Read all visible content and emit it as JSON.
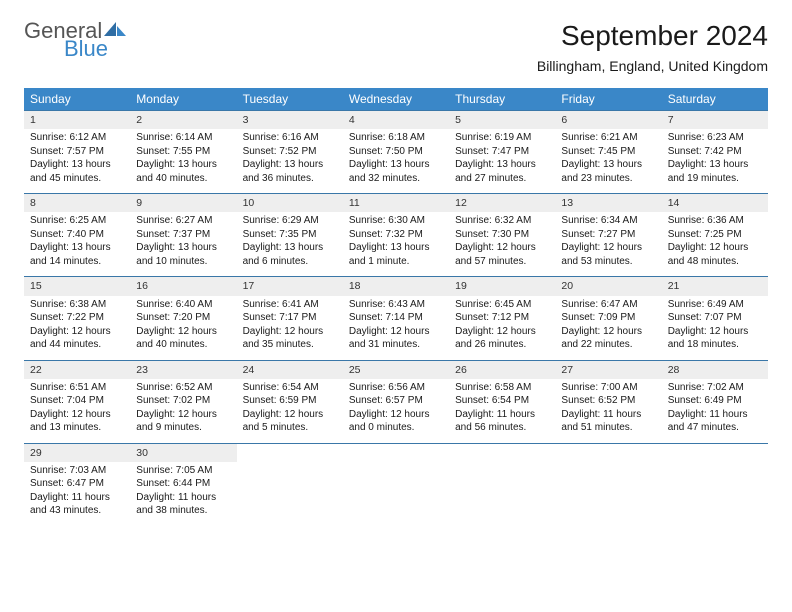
{
  "logo": {
    "text1": "General",
    "text2": "Blue"
  },
  "title": "September 2024",
  "location": "Billingham, England, United Kingdom",
  "theme": {
    "header_bg": "#3a87c8",
    "header_fg": "#ffffff",
    "daynum_bg": "#eeeeee",
    "row_border": "#3a77a8",
    "title_fontsize": 28,
    "location_fontsize": 14,
    "cell_fontsize": 10,
    "daynum_fontsize": 10.5
  },
  "weekdays": [
    "Sunday",
    "Monday",
    "Tuesday",
    "Wednesday",
    "Thursday",
    "Friday",
    "Saturday"
  ],
  "weeks": [
    [
      {
        "n": "1",
        "sunrise": "Sunrise: 6:12 AM",
        "sunset": "Sunset: 7:57 PM",
        "day1": "Daylight: 13 hours",
        "day2": "and 45 minutes."
      },
      {
        "n": "2",
        "sunrise": "Sunrise: 6:14 AM",
        "sunset": "Sunset: 7:55 PM",
        "day1": "Daylight: 13 hours",
        "day2": "and 40 minutes."
      },
      {
        "n": "3",
        "sunrise": "Sunrise: 6:16 AM",
        "sunset": "Sunset: 7:52 PM",
        "day1": "Daylight: 13 hours",
        "day2": "and 36 minutes."
      },
      {
        "n": "4",
        "sunrise": "Sunrise: 6:18 AM",
        "sunset": "Sunset: 7:50 PM",
        "day1": "Daylight: 13 hours",
        "day2": "and 32 minutes."
      },
      {
        "n": "5",
        "sunrise": "Sunrise: 6:19 AM",
        "sunset": "Sunset: 7:47 PM",
        "day1": "Daylight: 13 hours",
        "day2": "and 27 minutes."
      },
      {
        "n": "6",
        "sunrise": "Sunrise: 6:21 AM",
        "sunset": "Sunset: 7:45 PM",
        "day1": "Daylight: 13 hours",
        "day2": "and 23 minutes."
      },
      {
        "n": "7",
        "sunrise": "Sunrise: 6:23 AM",
        "sunset": "Sunset: 7:42 PM",
        "day1": "Daylight: 13 hours",
        "day2": "and 19 minutes."
      }
    ],
    [
      {
        "n": "8",
        "sunrise": "Sunrise: 6:25 AM",
        "sunset": "Sunset: 7:40 PM",
        "day1": "Daylight: 13 hours",
        "day2": "and 14 minutes."
      },
      {
        "n": "9",
        "sunrise": "Sunrise: 6:27 AM",
        "sunset": "Sunset: 7:37 PM",
        "day1": "Daylight: 13 hours",
        "day2": "and 10 minutes."
      },
      {
        "n": "10",
        "sunrise": "Sunrise: 6:29 AM",
        "sunset": "Sunset: 7:35 PM",
        "day1": "Daylight: 13 hours",
        "day2": "and 6 minutes."
      },
      {
        "n": "11",
        "sunrise": "Sunrise: 6:30 AM",
        "sunset": "Sunset: 7:32 PM",
        "day1": "Daylight: 13 hours",
        "day2": "and 1 minute."
      },
      {
        "n": "12",
        "sunrise": "Sunrise: 6:32 AM",
        "sunset": "Sunset: 7:30 PM",
        "day1": "Daylight: 12 hours",
        "day2": "and 57 minutes."
      },
      {
        "n": "13",
        "sunrise": "Sunrise: 6:34 AM",
        "sunset": "Sunset: 7:27 PM",
        "day1": "Daylight: 12 hours",
        "day2": "and 53 minutes."
      },
      {
        "n": "14",
        "sunrise": "Sunrise: 6:36 AM",
        "sunset": "Sunset: 7:25 PM",
        "day1": "Daylight: 12 hours",
        "day2": "and 48 minutes."
      }
    ],
    [
      {
        "n": "15",
        "sunrise": "Sunrise: 6:38 AM",
        "sunset": "Sunset: 7:22 PM",
        "day1": "Daylight: 12 hours",
        "day2": "and 44 minutes."
      },
      {
        "n": "16",
        "sunrise": "Sunrise: 6:40 AM",
        "sunset": "Sunset: 7:20 PM",
        "day1": "Daylight: 12 hours",
        "day2": "and 40 minutes."
      },
      {
        "n": "17",
        "sunrise": "Sunrise: 6:41 AM",
        "sunset": "Sunset: 7:17 PM",
        "day1": "Daylight: 12 hours",
        "day2": "and 35 minutes."
      },
      {
        "n": "18",
        "sunrise": "Sunrise: 6:43 AM",
        "sunset": "Sunset: 7:14 PM",
        "day1": "Daylight: 12 hours",
        "day2": "and 31 minutes."
      },
      {
        "n": "19",
        "sunrise": "Sunrise: 6:45 AM",
        "sunset": "Sunset: 7:12 PM",
        "day1": "Daylight: 12 hours",
        "day2": "and 26 minutes."
      },
      {
        "n": "20",
        "sunrise": "Sunrise: 6:47 AM",
        "sunset": "Sunset: 7:09 PM",
        "day1": "Daylight: 12 hours",
        "day2": "and 22 minutes."
      },
      {
        "n": "21",
        "sunrise": "Sunrise: 6:49 AM",
        "sunset": "Sunset: 7:07 PM",
        "day1": "Daylight: 12 hours",
        "day2": "and 18 minutes."
      }
    ],
    [
      {
        "n": "22",
        "sunrise": "Sunrise: 6:51 AM",
        "sunset": "Sunset: 7:04 PM",
        "day1": "Daylight: 12 hours",
        "day2": "and 13 minutes."
      },
      {
        "n": "23",
        "sunrise": "Sunrise: 6:52 AM",
        "sunset": "Sunset: 7:02 PM",
        "day1": "Daylight: 12 hours",
        "day2": "and 9 minutes."
      },
      {
        "n": "24",
        "sunrise": "Sunrise: 6:54 AM",
        "sunset": "Sunset: 6:59 PM",
        "day1": "Daylight: 12 hours",
        "day2": "and 5 minutes."
      },
      {
        "n": "25",
        "sunrise": "Sunrise: 6:56 AM",
        "sunset": "Sunset: 6:57 PM",
        "day1": "Daylight: 12 hours",
        "day2": "and 0 minutes."
      },
      {
        "n": "26",
        "sunrise": "Sunrise: 6:58 AM",
        "sunset": "Sunset: 6:54 PM",
        "day1": "Daylight: 11 hours",
        "day2": "and 56 minutes."
      },
      {
        "n": "27",
        "sunrise": "Sunrise: 7:00 AM",
        "sunset": "Sunset: 6:52 PM",
        "day1": "Daylight: 11 hours",
        "day2": "and 51 minutes."
      },
      {
        "n": "28",
        "sunrise": "Sunrise: 7:02 AM",
        "sunset": "Sunset: 6:49 PM",
        "day1": "Daylight: 11 hours",
        "day2": "and 47 minutes."
      }
    ],
    [
      {
        "n": "29",
        "sunrise": "Sunrise: 7:03 AM",
        "sunset": "Sunset: 6:47 PM",
        "day1": "Daylight: 11 hours",
        "day2": "and 43 minutes."
      },
      {
        "n": "30",
        "sunrise": "Sunrise: 7:05 AM",
        "sunset": "Sunset: 6:44 PM",
        "day1": "Daylight: 11 hours",
        "day2": "and 38 minutes."
      },
      null,
      null,
      null,
      null,
      null
    ]
  ]
}
